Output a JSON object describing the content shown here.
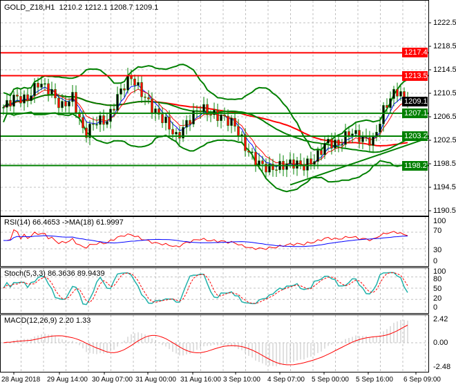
{
  "header": {
    "symbol": "GOLD_Z18,H1",
    "ohlc": "1210.2 1212.1 1208.7 1209.1"
  },
  "indicators": {
    "rsi": "RSI(14) 66.4653  ->MA(18) 61.9997",
    "stoch": "Stoch(5,3,3) 86.3636 89.9439",
    "macd": "MACD(12,26,9) 2.20 1.33"
  },
  "price_axis": [
    "1222.5",
    "1218.5",
    "1214.5",
    "1210.5",
    "1206.5",
    "1202.5",
    "1198.5",
    "1194.5",
    "1190.5"
  ],
  "rsi_axis": [
    "100",
    "70",
    "30",
    "0"
  ],
  "stoch_axis": [
    "100",
    "80",
    "50",
    "20",
    "0"
  ],
  "macd_axis": [
    "2.42",
    "0.00",
    "-2.48"
  ],
  "time_axis": [
    "28 Aug 2018",
    "29 Aug 14:00",
    "30 Aug 07:00",
    "31 Aug 00:00",
    "31 Aug 16:00",
    "3 Sep 10:00",
    "4 Sep 07:00",
    "5 Sep 00:00",
    "5 Sep 16:00",
    "6 Sep 09:00"
  ],
  "levels": [
    {
      "price": 1217.4,
      "label": "1217.4",
      "color": "#ff0000"
    },
    {
      "price": 1213.5,
      "label": "1213.5",
      "color": "#ff0000"
    },
    {
      "price": 1207.1,
      "label": "1207.1",
      "color": "#008000"
    },
    {
      "price": 1203.2,
      "label": "1203.2",
      "color": "#008000"
    },
    {
      "price": 1198.2,
      "label": "1198.2",
      "color": "#008000"
    }
  ],
  "last_price": {
    "label": "1209.1",
    "color": "#000000"
  },
  "trendline": {
    "from": 1194.9,
    "to": 1202.9,
    "color": "#008000"
  },
  "chart_data": {
    "type": "candlestick",
    "close": [
      1208.1,
      1209.9,
      1209.3,
      1212.3,
      1211.1,
      1208.1,
      1209.9,
      1203.4,
      1205.8,
      1205.8,
      1210.5,
      1213.4,
      1210.5,
      1207.6,
      1205.8,
      1202.9,
      1205.8,
      1208.1,
      1207.0,
      1206.4,
      1205.2,
      1201.1,
      1198.7,
      1197.6,
      1198.1,
      1198.7,
      1198.1,
      1199.3,
      1202.3,
      1201.7,
      1204.0,
      1202.9,
      1202.3,
      1208.1,
      1211.1,
      1209.1
    ]
  }
}
